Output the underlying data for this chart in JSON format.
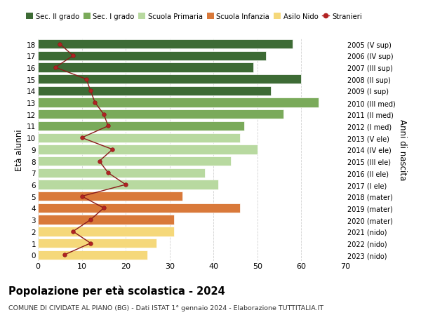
{
  "ages": [
    18,
    17,
    16,
    15,
    14,
    13,
    12,
    11,
    10,
    9,
    8,
    7,
    6,
    5,
    4,
    3,
    2,
    1,
    0
  ],
  "right_labels": [
    "2005 (V sup)",
    "2006 (IV sup)",
    "2007 (III sup)",
    "2008 (II sup)",
    "2009 (I sup)",
    "2010 (III med)",
    "2011 (II med)",
    "2012 (I med)",
    "2013 (V ele)",
    "2014 (IV ele)",
    "2015 (III ele)",
    "2016 (II ele)",
    "2017 (I ele)",
    "2018 (mater)",
    "2019 (mater)",
    "2020 (mater)",
    "2021 (nido)",
    "2022 (nido)",
    "2023 (nido)"
  ],
  "bar_values": [
    58,
    52,
    49,
    60,
    53,
    64,
    56,
    47,
    46,
    50,
    44,
    38,
    41,
    33,
    46,
    31,
    31,
    27,
    25
  ],
  "bar_colors": [
    "#3d6b35",
    "#3d6b35",
    "#3d6b35",
    "#3d6b35",
    "#3d6b35",
    "#7aaa5a",
    "#7aaa5a",
    "#7aaa5a",
    "#b8d9a0",
    "#b8d9a0",
    "#b8d9a0",
    "#b8d9a0",
    "#b8d9a0",
    "#d9793a",
    "#d9793a",
    "#d9793a",
    "#f5d87a",
    "#f5d87a",
    "#f5d87a"
  ],
  "stranieri_values": [
    5,
    8,
    4,
    11,
    12,
    13,
    15,
    16,
    10,
    17,
    14,
    16,
    20,
    10,
    15,
    12,
    8,
    12,
    6
  ],
  "legend_labels": [
    "Sec. II grado",
    "Sec. I grado",
    "Scuola Primaria",
    "Scuola Infanzia",
    "Asilo Nido",
    "Stranieri"
  ],
  "legend_colors": [
    "#3d6b35",
    "#7aaa5a",
    "#b8d9a0",
    "#d9793a",
    "#f5d87a",
    "#b22222"
  ],
  "title": "Popolazione per età scolastica - 2024",
  "subtitle": "COMUNE DI CIVIDATE AL PIANO (BG) - Dati ISTAT 1° gennaio 2024 - Elaborazione TUTTITALIA.IT",
  "ylabel_left": "Età alunni",
  "ylabel_right": "Anni di nascita",
  "xlim": [
    0,
    70
  ],
  "xticks": [
    0,
    10,
    20,
    30,
    40,
    50,
    60,
    70
  ],
  "bg_color": "#ffffff",
  "grid_color": "#cccccc"
}
